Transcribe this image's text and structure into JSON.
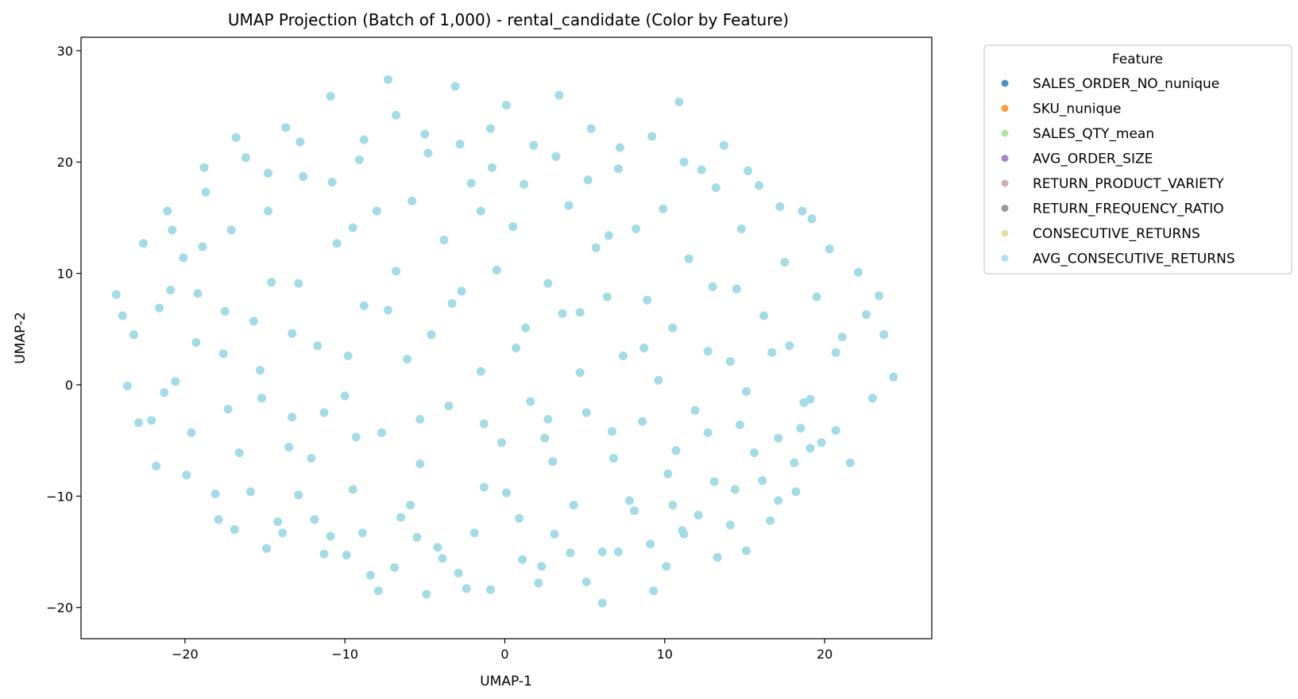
{
  "chart_data": {
    "type": "scatter",
    "title": "UMAP Projection (Batch of 1,000) - rental_candidate (Color by Feature)",
    "xlabel": "UMAP-1",
    "ylabel": "UMAP-2",
    "xlim": [
      -26.5,
      26.7
    ],
    "ylim": [
      -22.8,
      31.2
    ],
    "xticks": [
      -20,
      -10,
      0,
      10,
      20
    ],
    "yticks": [
      -20,
      -10,
      0,
      10,
      20,
      30
    ],
    "xtick_labels": [
      "−20",
      "−10",
      "0",
      "10",
      "20"
    ],
    "ytick_labels": [
      "−20",
      "−10",
      "0",
      "10",
      "20",
      "30"
    ],
    "grid": false,
    "legend": {
      "title": "Feature",
      "placement": "outside-upper-right",
      "entries": [
        {
          "name": "SALES_ORDER_NO_nunique",
          "color": "#1f77b4"
        },
        {
          "name": "SKU_nunique",
          "color": "#ff7f0e"
        },
        {
          "name": "SALES_QTY_mean",
          "color": "#98df8a"
        },
        {
          "name": "AVG_ORDER_SIZE",
          "color": "#9467bd"
        },
        {
          "name": "RETURN_PRODUCT_VARIETY",
          "color": "#c49c94"
        },
        {
          "name": "RETURN_FREQUENCY_RATIO",
          "color": "#7f7f7f"
        },
        {
          "name": "CONSECUTIVE_RETURNS",
          "color": "#dbdb8d"
        },
        {
          "name": "AVG_CONSECUTIVE_RETURNS",
          "color": "#9edae5"
        }
      ]
    },
    "marker_color": "#9edae5",
    "series": [
      {
        "name": "AVG_CONSECUTIVE_RETURNS",
        "points": [
          [
            -24.3,
            8.1
          ],
          [
            -23.6,
            -0.1
          ],
          [
            -23.2,
            4.5
          ],
          [
            -22.6,
            12.7
          ],
          [
            -22.1,
            -3.2
          ],
          [
            -21.6,
            6.9
          ],
          [
            -21.1,
            15.6
          ],
          [
            -20.6,
            0.3
          ],
          [
            -20.1,
            11.4
          ],
          [
            -19.6,
            -4.3
          ],
          [
            -19.2,
            8.2
          ],
          [
            -18.7,
            17.3
          ],
          [
            -18.1,
            -9.8
          ],
          [
            -17.6,
            2.8
          ],
          [
            -17.1,
            13.9
          ],
          [
            -16.6,
            -6.1
          ],
          [
            -16.2,
            20.4
          ],
          [
            -15.7,
            5.7
          ],
          [
            -15.2,
            -1.2
          ],
          [
            -14.8,
            15.6
          ],
          [
            -14.6,
            9.2
          ],
          [
            -14.2,
            -12.3
          ],
          [
            -13.7,
            23.1
          ],
          [
            -13.3,
            -2.9
          ],
          [
            -12.9,
            9.1
          ],
          [
            -12.6,
            18.7
          ],
          [
            -12.1,
            -6.6
          ],
          [
            -11.7,
            3.5
          ],
          [
            -11.3,
            -15.2
          ],
          [
            -10.9,
            25.9
          ],
          [
            -10.5,
            12.7
          ],
          [
            -10.0,
            -1.0
          ],
          [
            -9.8,
            2.6
          ],
          [
            -9.5,
            -9.4
          ],
          [
            -9.1,
            20.2
          ],
          [
            -8.8,
            7.1
          ],
          [
            -8.4,
            -17.1
          ],
          [
            -8.0,
            15.6
          ],
          [
            -7.7,
            -4.3
          ],
          [
            -7.3,
            27.4
          ],
          [
            -6.8,
            10.2
          ],
          [
            -6.5,
            -11.9
          ],
          [
            -6.1,
            2.3
          ],
          [
            -5.8,
            16.5
          ],
          [
            -5.3,
            -7.1
          ],
          [
            -5.0,
            22.5
          ],
          [
            -4.6,
            4.5
          ],
          [
            -4.2,
            -14.6
          ],
          [
            -3.8,
            13.0
          ],
          [
            -3.5,
            -1.9
          ],
          [
            -3.1,
            26.8
          ],
          [
            -2.7,
            8.4
          ],
          [
            -2.4,
            -18.3
          ],
          [
            -2.1,
            18.1
          ],
          [
            -1.5,
            1.2
          ],
          [
            -1.3,
            -9.2
          ],
          [
            -0.9,
            23.0
          ],
          [
            -0.5,
            10.3
          ],
          [
            -0.2,
            -5.2
          ],
          [
            0.1,
            25.1
          ],
          [
            0.5,
            14.2
          ],
          [
            0.9,
            -12.0
          ],
          [
            1.3,
            5.1
          ],
          [
            1.6,
            -1.5
          ],
          [
            1.8,
            21.5
          ],
          [
            2.3,
            -16.3
          ],
          [
            2.7,
            9.1
          ],
          [
            3.0,
            -6.9
          ],
          [
            3.4,
            26.0
          ],
          [
            3.6,
            6.4
          ],
          [
            4.0,
            16.1
          ],
          [
            4.3,
            -10.8
          ],
          [
            4.7,
            1.1
          ],
          [
            5.1,
            -2.5
          ],
          [
            5.4,
            23.0
          ],
          [
            5.7,
            12.3
          ],
          [
            6.1,
            -15.0
          ],
          [
            6.4,
            7.9
          ],
          [
            6.8,
            -6.6
          ],
          [
            7.1,
            19.4
          ],
          [
            7.4,
            2.6
          ],
          [
            7.8,
            -10.4
          ],
          [
            8.2,
            14.0
          ],
          [
            8.6,
            -3.3
          ],
          [
            8.9,
            7.6
          ],
          [
            9.3,
            -18.5
          ],
          [
            9.6,
            0.4
          ],
          [
            9.9,
            15.8
          ],
          [
            10.2,
            -8.0
          ],
          [
            10.5,
            5.1
          ],
          [
            10.9,
            25.4
          ],
          [
            11.2,
            -13.4
          ],
          [
            11.5,
            11.3
          ],
          [
            11.9,
            -2.3
          ],
          [
            12.3,
            19.3
          ],
          [
            12.7,
            -4.3
          ],
          [
            13.0,
            8.8
          ],
          [
            13.3,
            -15.5
          ],
          [
            13.7,
            21.5
          ],
          [
            14.1,
            2.1
          ],
          [
            14.4,
            -9.4
          ],
          [
            14.8,
            14.0
          ],
          [
            15.1,
            -0.6
          ],
          [
            15.6,
            -6.1
          ],
          [
            15.9,
            17.9
          ],
          [
            16.2,
            6.2
          ],
          [
            16.6,
            -12.2
          ],
          [
            17.1,
            -4.8
          ],
          [
            17.5,
            11.0
          ],
          [
            17.8,
            3.5
          ],
          [
            18.2,
            -9.6
          ],
          [
            18.6,
            15.6
          ],
          [
            19.1,
            -1.3
          ],
          [
            19.5,
            7.9
          ],
          [
            19.8,
            -5.2
          ],
          [
            20.3,
            12.2
          ],
          [
            20.7,
            -4.1
          ],
          [
            21.1,
            4.3
          ],
          [
            21.6,
            -7.0
          ],
          [
            22.1,
            10.1
          ],
          [
            22.6,
            6.3
          ],
          [
            23.0,
            -1.2
          ],
          [
            23.4,
            8.0
          ],
          [
            23.7,
            4.5
          ],
          [
            24.3,
            0.7
          ],
          [
            -23.9,
            6.2
          ],
          [
            -22.9,
            -3.4
          ],
          [
            -21.8,
            -7.3
          ],
          [
            -20.9,
            8.5
          ],
          [
            -19.9,
            -8.1
          ],
          [
            -18.9,
            12.4
          ],
          [
            -17.9,
            -12.1
          ],
          [
            -16.9,
            -13.0
          ],
          [
            -15.9,
            -9.6
          ],
          [
            -14.9,
            -14.7
          ],
          [
            -13.9,
            -13.3
          ],
          [
            -12.9,
            -9.9
          ],
          [
            -11.9,
            -12.1
          ],
          [
            -10.9,
            -13.6
          ],
          [
            -9.9,
            -15.3
          ],
          [
            -8.9,
            -13.3
          ],
          [
            -7.9,
            -18.5
          ],
          [
            -6.9,
            -16.4
          ],
          [
            -5.9,
            -10.8
          ],
          [
            -4.9,
            -18.8
          ],
          [
            -3.9,
            -15.6
          ],
          [
            -2.9,
            -16.9
          ],
          [
            -1.9,
            -13.3
          ],
          [
            -0.9,
            -18.4
          ],
          [
            0.1,
            -9.7
          ],
          [
            1.1,
            -15.7
          ],
          [
            2.1,
            -17.8
          ],
          [
            3.1,
            -13.4
          ],
          [
            4.1,
            -15.1
          ],
          [
            5.1,
            -17.7
          ],
          [
            6.1,
            -19.6
          ],
          [
            7.1,
            -15.0
          ],
          [
            8.1,
            -11.3
          ],
          [
            9.1,
            -14.3
          ],
          [
            10.1,
            -16.3
          ],
          [
            11.1,
            -13.1
          ],
          [
            12.1,
            -11.7
          ],
          [
            13.1,
            -8.7
          ],
          [
            14.1,
            -12.6
          ],
          [
            15.1,
            -14.9
          ],
          [
            16.1,
            -8.6
          ],
          [
            17.1,
            -10.4
          ],
          [
            18.1,
            -7.0
          ],
          [
            19.1,
            -5.7
          ],
          [
            -21.3,
            -0.7
          ],
          [
            -19.3,
            3.8
          ],
          [
            -17.3,
            -2.2
          ],
          [
            -15.3,
            1.3
          ],
          [
            -13.3,
            4.6
          ],
          [
            -11.3,
            -2.5
          ],
          [
            -9.3,
            -4.7
          ],
          [
            -7.3,
            6.7
          ],
          [
            -5.3,
            -3.1
          ],
          [
            -3.3,
            7.3
          ],
          [
            -1.3,
            -3.5
          ],
          [
            0.7,
            3.3
          ],
          [
            2.7,
            -3.1
          ],
          [
            4.7,
            6.5
          ],
          [
            6.7,
            -4.2
          ],
          [
            8.7,
            3.3
          ],
          [
            10.7,
            -5.9
          ],
          [
            12.7,
            3.0
          ],
          [
            14.7,
            -3.6
          ],
          [
            16.7,
            2.9
          ],
          [
            18.7,
            -1.6
          ],
          [
            20.7,
            2.9
          ],
          [
            -20.8,
            13.9
          ],
          [
            -18.8,
            19.5
          ],
          [
            -16.8,
            22.2
          ],
          [
            -14.8,
            19.0
          ],
          [
            -12.8,
            21.8
          ],
          [
            -10.8,
            18.2
          ],
          [
            -8.8,
            22.0
          ],
          [
            -6.8,
            24.2
          ],
          [
            -4.8,
            20.8
          ],
          [
            -2.8,
            21.6
          ],
          [
            -0.8,
            19.5
          ],
          [
            1.2,
            18.0
          ],
          [
            3.2,
            20.5
          ],
          [
            5.2,
            18.4
          ],
          [
            7.2,
            21.3
          ],
          [
            9.2,
            22.3
          ],
          [
            11.2,
            20.0
          ],
          [
            13.2,
            17.7
          ],
          [
            15.2,
            19.2
          ],
          [
            17.2,
            16.0
          ],
          [
            19.2,
            14.9
          ],
          [
            -17.5,
            6.6
          ],
          [
            -13.5,
            -5.6
          ],
          [
            -9.5,
            14.1
          ],
          [
            -5.5,
            -13.7
          ],
          [
            -1.5,
            15.6
          ],
          [
            2.5,
            -4.8
          ],
          [
            6.5,
            13.4
          ],
          [
            10.5,
            -10.8
          ],
          [
            14.5,
            8.6
          ],
          [
            18.5,
            -3.9
          ]
        ]
      }
    ]
  }
}
